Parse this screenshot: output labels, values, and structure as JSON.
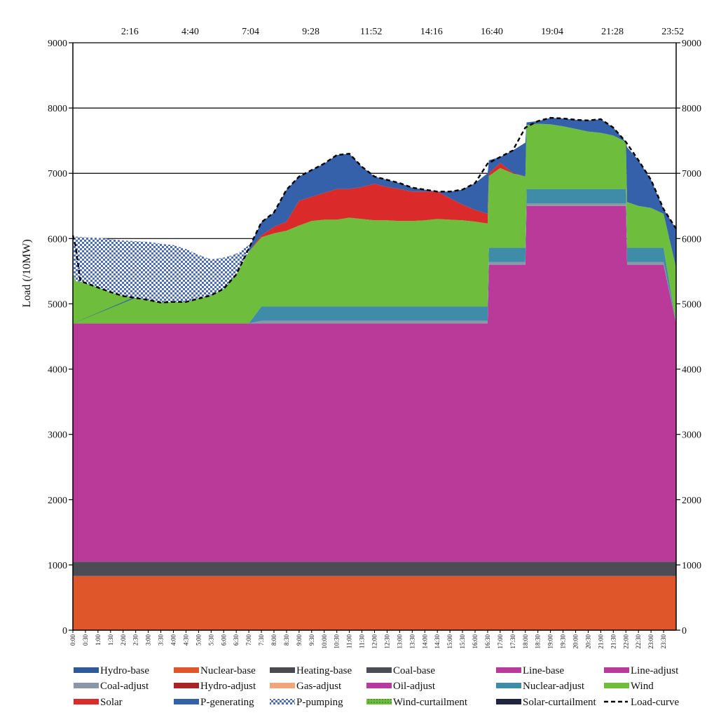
{
  "chart_data": {
    "type": "area",
    "title": "",
    "ylabel": "Load (/10MW)",
    "ylim": [
      0,
      9000
    ],
    "yticks": [
      0,
      1000,
      2000,
      3000,
      4000,
      5000,
      6000,
      7000,
      8000,
      9000
    ],
    "ytick_labels": [
      "0",
      "1000",
      "2000",
      "3000",
      "4000",
      "5000",
      "6000",
      "7000",
      "8000",
      "9000"
    ],
    "gridlines_y": [
      6000,
      7000,
      8000,
      9000
    ],
    "top_axis_labels": [
      "2:16",
      "4:40",
      "7:04",
      "9:28",
      "11:52",
      "14:16",
      "16:40",
      "19:04",
      "21:28",
      "23:52"
    ],
    "top_axis_hours": [
      2.2667,
      4.6667,
      7.0667,
      9.4667,
      11.8667,
      14.2667,
      16.6667,
      19.0667,
      21.4667,
      23.8667
    ],
    "x_tick_labels": [
      "0:00",
      "0:30",
      "1:00",
      "1:30",
      "2:00",
      "2:30",
      "3:00",
      "3:30",
      "4:00",
      "4:30",
      "5:00",
      "5:30",
      "6:00",
      "6:30",
      "7:00",
      "7:30",
      "8:00",
      "8:30",
      "9:00",
      "9:30",
      "10:00",
      "10:30",
      "11:00",
      "11:30",
      "12:00",
      "12:30",
      "13:00",
      "13:30",
      "14:00",
      "14:30",
      "15:00",
      "15:30",
      "16:00",
      "16:30",
      "17:00",
      "17:30",
      "18:00",
      "18:30",
      "19:00",
      "19:30",
      "20:00",
      "20:30",
      "21:00",
      "21:30",
      "22:00",
      "22:30",
      "23:00",
      "23:30"
    ],
    "x_hours": [
      0,
      0.5,
      1,
      1.5,
      2,
      2.5,
      3,
      3.5,
      4,
      4.5,
      5,
      5.5,
      6,
      6.5,
      7,
      7.5,
      8,
      8.5,
      9,
      9.5,
      10,
      10.5,
      11,
      11.5,
      12,
      12.5,
      13,
      13.5,
      14,
      14.5,
      15,
      15.5,
      16,
      16.5,
      17,
      17.5,
      18,
      18.5,
      19,
      19.5,
      20,
      20.5,
      21,
      21.5,
      22,
      22.5,
      23,
      23.5
    ],
    "x_range_hours": [
      0,
      24
    ],
    "legend": [
      {
        "name": "Hydro-base",
        "color": "#2f5a9a",
        "style": "solid"
      },
      {
        "name": "Nuclear-base",
        "color": "#e0562b",
        "style": "solid"
      },
      {
        "name": "Heating-base",
        "color": "#4a4a50",
        "style": "solid"
      },
      {
        "name": "Coal-base",
        "color": "#4c4c54",
        "style": "solid"
      },
      {
        "name": "Line-base",
        "color": "#b93a98",
        "style": "solid"
      },
      {
        "name": "Line-adjust",
        "color": "#b93a98",
        "style": "solid"
      },
      {
        "name": "Coal-adjust",
        "color": "#8a97a8",
        "style": "solid"
      },
      {
        "name": "Hydro-adjust",
        "color": "#a82424",
        "style": "solid"
      },
      {
        "name": "Gas-adjust",
        "color": "#f0a57a",
        "style": "solid"
      },
      {
        "name": "Oil-adjust",
        "color": "#b63aa0",
        "style": "solid"
      },
      {
        "name": "Nuclear-adjust",
        "color": "#3f8ca8",
        "style": "solid"
      },
      {
        "name": "Wind",
        "color": "#6fbd3c",
        "style": "solid"
      },
      {
        "name": "Solar",
        "color": "#db2a2a",
        "style": "solid"
      },
      {
        "name": "P-generating",
        "color": "#3461aa",
        "style": "solid"
      },
      {
        "name": "P-pumping",
        "color": "#4a6cc0",
        "style": "checker"
      },
      {
        "name": "Wind-curtailment",
        "color": "#5ab545",
        "style": "dotted"
      },
      {
        "name": "Solar-curtailment",
        "color": "#1f2540",
        "style": "solid"
      },
      {
        "name": "Load-curve",
        "color": "#000000",
        "style": "dashed"
      }
    ],
    "series": [
      {
        "name": "Nuclear-base",
        "color": "#e0562b",
        "x": [
          0,
          24
        ],
        "y0": [
          0,
          0
        ],
        "y1": [
          830,
          830
        ]
      },
      {
        "name": "Coal-base",
        "color": "#4c4c54",
        "x": [
          0,
          24
        ],
        "y0": [
          830,
          830
        ],
        "y1": [
          1050,
          1050
        ]
      },
      {
        "name": "Line-base",
        "color": "#b93a98",
        "x": [
          0,
          16.5,
          16.55,
          18,
          18.05,
          22,
          22.05,
          23.5,
          24
        ],
        "y0": [
          1050,
          1050,
          1050,
          1050,
          1050,
          1050,
          1050,
          1050,
          1050
        ],
        "y1": [
          4700,
          4700,
          5600,
          5600,
          6500,
          6500,
          5600,
          5600,
          4700
        ]
      },
      {
        "name": "Coal-adjust",
        "color": "#8a97a8",
        "x": [
          0,
          7,
          7.5,
          16.5,
          16.55,
          18,
          18.05,
          22,
          22.05,
          23.5,
          24
        ],
        "y0": [
          4700,
          4700,
          4700,
          4700,
          5600,
          5600,
          6500,
          6500,
          5600,
          5600,
          4700
        ],
        "y1": [
          4700,
          4700,
          4740,
          4740,
          5640,
          5640,
          6540,
          6540,
          5640,
          5640,
          4700
        ]
      },
      {
        "name": "Nuclear-adjust",
        "color": "#3f8ca8",
        "x": [
          0,
          7,
          7.5,
          16.5,
          16.55,
          18,
          18.05,
          22,
          22.05,
          23.5,
          24
        ],
        "y0": [
          4700,
          4700,
          4740,
          4740,
          5640,
          5640,
          6540,
          6540,
          5640,
          5640,
          4700
        ],
        "y1": [
          4700,
          4700,
          4960,
          4960,
          5860,
          5860,
          6760,
          6760,
          5860,
          5860,
          4700
        ]
      },
      {
        "name": "Wind",
        "color": "#6fbd3c",
        "x": [
          0,
          0.1,
          0.5,
          1,
          1.5,
          2,
          2.5,
          3,
          3.5,
          4,
          4.5,
          5,
          5.5,
          6,
          6.5,
          7,
          7.5,
          8,
          8.5,
          9,
          9.5,
          10,
          10.5,
          11,
          11.5,
          12,
          12.5,
          13,
          13.5,
          14,
          14.5,
          15,
          15.5,
          16,
          16.5,
          16.55,
          17,
          17.5,
          18,
          18.05,
          18.5,
          19,
          19.5,
          20,
          20.5,
          21,
          21.5,
          22,
          22.05,
          22.5,
          23,
          23.5,
          24
        ],
        "y0": [
          4700,
          4700,
          4700,
          4700,
          4700,
          4700,
          4700,
          4700,
          4700,
          4700,
          4700,
          4700,
          4700,
          4700,
          4700,
          4700,
          4960,
          4960,
          4960,
          4960,
          4960,
          4960,
          4960,
          4960,
          4960,
          4960,
          4960,
          4960,
          4960,
          4960,
          4960,
          4960,
          4960,
          4960,
          4960,
          5860,
          5860,
          5860,
          5860,
          6760,
          6760,
          6760,
          6760,
          6760,
          6760,
          6760,
          6760,
          6760,
          5860,
          5860,
          5860,
          5860,
          4700
        ],
        "y1": [
          5500,
          5350,
          5320,
          5250,
          5180,
          5120,
          5090,
          5060,
          5020,
          5030,
          5030,
          5080,
          5130,
          5230,
          5450,
          5800,
          6020,
          6080,
          6120,
          6200,
          6270,
          6290,
          6290,
          6320,
          6300,
          6280,
          6280,
          6270,
          6270,
          6280,
          6300,
          6290,
          6280,
          6260,
          6230,
          6960,
          7080,
          7000,
          6950,
          7740,
          7760,
          7750,
          7720,
          7680,
          7640,
          7620,
          7580,
          7480,
          6560,
          6500,
          6470,
          6380,
          5550
        ]
      },
      {
        "name": "Solar",
        "color": "#db2a2a",
        "x": [
          0,
          7,
          7.5,
          8,
          8.5,
          9,
          9.5,
          10,
          10.5,
          11,
          11.5,
          12,
          12.5,
          13,
          13.5,
          14,
          14.5,
          15,
          15.5,
          16,
          16.5,
          16.55,
          17,
          17.5,
          18,
          24
        ],
        "y0": [
          4700,
          5800,
          6020,
          6080,
          6120,
          6200,
          6270,
          6290,
          6290,
          6320,
          6300,
          6280,
          6280,
          6270,
          6270,
          6280,
          6300,
          6290,
          6280,
          6260,
          6230,
          6960,
          7080,
          7000,
          6950,
          6950
        ],
        "y1": [
          4700,
          5800,
          6050,
          6180,
          6260,
          6580,
          6640,
          6700,
          6760,
          6760,
          6790,
          6840,
          6790,
          6760,
          6720,
          6720,
          6720,
          6620,
          6520,
          6440,
          6380,
          7000,
          7160,
          7010,
          6950,
          6950
        ]
      },
      {
        "name": "P-generating",
        "color": "#3461aa",
        "x": [
          0,
          7,
          7.5,
          8,
          8.5,
          9,
          9.5,
          10,
          10.5,
          11,
          11.5,
          12,
          12.5,
          13,
          13.5,
          14,
          14.5,
          15,
          15.5,
          16,
          16.5,
          16.55,
          17,
          17.5,
          18,
          18.05,
          18.5,
          19,
          19.5,
          20,
          20.5,
          21,
          21.5,
          22,
          22.05,
          22.5,
          23,
          23.5,
          24
        ],
        "y0": [
          4700,
          5800,
          6050,
          6180,
          6260,
          6580,
          6640,
          6700,
          6760,
          6760,
          6790,
          6840,
          6790,
          6760,
          6720,
          6720,
          6720,
          6620,
          6520,
          6440,
          6380,
          7000,
          7160,
          7010,
          6950,
          7740,
          7760,
          7750,
          7720,
          7680,
          7640,
          7620,
          7580,
          7480,
          6560,
          6500,
          6470,
          6380,
          5550
        ],
        "y1": [
          4700,
          5850,
          6250,
          6400,
          6750,
          6950,
          7050,
          7150,
          7280,
          7300,
          7100,
          6950,
          6900,
          6850,
          6780,
          6750,
          6720,
          6720,
          6750,
          6850,
          7000,
          7200,
          7250,
          7350,
          7470,
          7780,
          7800,
          7850,
          7840,
          7820,
          7810,
          7830,
          7700,
          7480,
          7400,
          7200,
          6900,
          6450,
          6150
        ]
      },
      {
        "name": "P-pumping",
        "color": "#4a6cc0",
        "x": [
          0,
          0.1,
          0.5,
          1,
          1.5,
          2,
          2.5,
          3,
          3.5,
          4,
          4.5,
          5,
          5.5,
          6,
          6.5,
          7
        ],
        "y0": [
          5500,
          5350,
          5320,
          5250,
          5180,
          5120,
          5090,
          5060,
          5020,
          5030,
          5030,
          5080,
          5130,
          5230,
          5450,
          5800
        ],
        "y1": [
          6050,
          6030,
          6020,
          6010,
          5990,
          5970,
          5960,
          5950,
          5920,
          5900,
          5840,
          5750,
          5680,
          5710,
          5760,
          5900
        ]
      },
      {
        "name": "Load-curve",
        "color": "#000000",
        "x": [
          0,
          0.1,
          0.3,
          0.5,
          1,
          1.5,
          2,
          2.5,
          3,
          3.5,
          4,
          4.5,
          5,
          5.5,
          6,
          6.5,
          7,
          7.5,
          8,
          8.5,
          9,
          9.5,
          10,
          10.5,
          11,
          11.5,
          12,
          12.5,
          13,
          13.5,
          14,
          14.5,
          15,
          15.5,
          16,
          16.5,
          17,
          17.5,
          18,
          18.5,
          19,
          19.5,
          20,
          20.5,
          21,
          21.5,
          22,
          22.5,
          23,
          23.5,
          24
        ],
        "y": [
          6050,
          5900,
          5350,
          5320,
          5250,
          5180,
          5120,
          5090,
          5060,
          5020,
          5030,
          5030,
          5080,
          5130,
          5230,
          5450,
          5850,
          6250,
          6400,
          6750,
          6950,
          7050,
          7150,
          7280,
          7300,
          7100,
          6950,
          6900,
          6850,
          6780,
          6750,
          6720,
          6720,
          6750,
          6850,
          7150,
          7250,
          7350,
          7700,
          7800,
          7850,
          7840,
          7820,
          7810,
          7830,
          7700,
          7480,
          7200,
          6900,
          6450,
          6150
        ]
      }
    ]
  }
}
